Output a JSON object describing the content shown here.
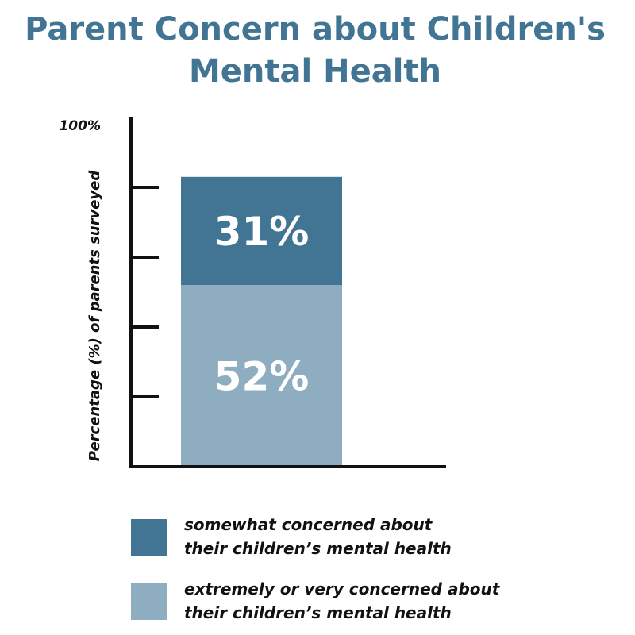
{
  "chart_data": {
    "type": "bar",
    "stacked": true,
    "title": "Parent Concern about Children's Mental Health",
    "title_lines": [
      "Parent Concern about Children's",
      "Mental Health"
    ],
    "ylabel": "Percentage (%) of parents surveyed",
    "xlabel": "",
    "ylim": [
      0,
      100
    ],
    "y_tick_label_top": "100%",
    "y_ticks": [
      20,
      40,
      60,
      80
    ],
    "categories": [
      ""
    ],
    "series": [
      {
        "name": "extremely or very concerned about their children’s mental health",
        "legend_lines": [
          "extremely or very concerned about",
          "their children’s mental health"
        ],
        "values": [
          52
        ],
        "label": "52%",
        "color": "#8eadc1"
      },
      {
        "name": "somewhat concerned about their children’s mental health",
        "legend_lines": [
          "somewhat concerned about",
          "their children’s mental health"
        ],
        "values": [
          31
        ],
        "label": "31%",
        "color": "#417593"
      }
    ],
    "legend_order": [
      1,
      0
    ],
    "axis_color": "#111111",
    "title_color": "#417593"
  }
}
